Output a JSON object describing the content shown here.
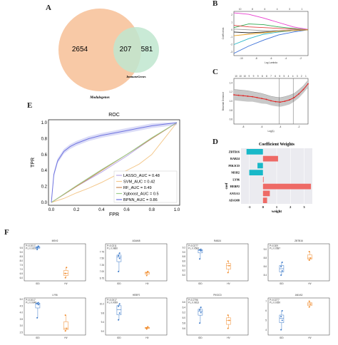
{
  "panels": {
    "A": "A",
    "B": "B",
    "C": "C",
    "D": "D",
    "E": "E",
    "F": "F"
  },
  "venn": {
    "left_only": "2654",
    "overlap": "207",
    "right_only": "581",
    "left_label": "Modulegenes",
    "right_label": "ImmuneGenes",
    "colors": {
      "left": "#f8c9a6",
      "right": "#bfe6cf"
    }
  },
  "chart_data": [
    {
      "id": "B",
      "type": "line",
      "title": "",
      "xlabel": "Log Lambda",
      "ylabel": "Coefficients",
      "top_ticks": [
        "10",
        "8",
        "6",
        "4",
        "3",
        "1"
      ],
      "x_ticks": [
        "-10",
        "-8",
        "-6",
        "-4",
        "-2"
      ],
      "y_ticks": [
        "2",
        "1",
        "0",
        "-1",
        "-2",
        "-3"
      ],
      "xlim": [
        -11,
        -1
      ],
      "ylim": [
        -3.5,
        2.5
      ],
      "series": [
        {
          "color": "#e83ccf",
          "x": [
            -11,
            -9,
            -7,
            -5,
            -3,
            -1
          ],
          "values": [
            2.3,
            2.1,
            1.6,
            1.0,
            0.4,
            0.05
          ]
        },
        {
          "color": "#2fa84f",
          "x": [
            -11,
            -9,
            -7,
            -5,
            -3,
            -1
          ],
          "values": [
            0.3,
            0.8,
            0.7,
            0.4,
            0.2,
            0.0
          ]
        },
        {
          "color": "#3a6fd8",
          "x": [
            -11,
            -9,
            -7,
            -5,
            -3,
            -1
          ],
          "values": [
            -3.2,
            -2.2,
            -1.4,
            -0.7,
            -0.3,
            0.0
          ]
        },
        {
          "color": "#26b6c6",
          "x": [
            -11,
            -9,
            -7,
            -5,
            -3,
            -1
          ],
          "values": [
            -2.0,
            -1.2,
            -0.6,
            -0.3,
            -0.1,
            0.0
          ]
        },
        {
          "color": "#e34242",
          "x": [
            -11,
            -9,
            -7,
            -5,
            -3,
            -1
          ],
          "values": [
            0.6,
            0.4,
            0.3,
            0.2,
            0.1,
            0.0
          ]
        },
        {
          "color": "#222222",
          "x": [
            -11,
            -9,
            -7,
            -5,
            -3,
            -1
          ],
          "values": [
            -0.3,
            -0.4,
            -0.3,
            -0.2,
            -0.1,
            0.0
          ]
        },
        {
          "color": "#9a9a9a",
          "x": [
            -11,
            -9,
            -7,
            -5,
            -3,
            -1
          ],
          "values": [
            0.1,
            0.0,
            -0.1,
            -0.1,
            0.0,
            0.0
          ]
        },
        {
          "color": "#e8a020",
          "x": [
            -11,
            -9,
            -7,
            -5,
            -3,
            -1
          ],
          "values": [
            -0.8,
            -0.6,
            -0.4,
            -0.2,
            -0.1,
            0.0
          ]
        }
      ]
    },
    {
      "id": "C",
      "type": "line",
      "title": "",
      "xlabel": "Log(λ)",
      "ylabel": "Binomial Deviance",
      "top_ticks": [
        "10",
        "10",
        "10",
        "9",
        "9",
        "9",
        "8",
        "8",
        "7",
        "6",
        "5",
        "5",
        "4",
        "4",
        "3",
        "2",
        "1"
      ],
      "x_ticks": [
        "-8",
        "-6",
        "-4",
        "-2"
      ],
      "y_ticks": [
        "1.4",
        "1.2",
        "1.0",
        "0.8",
        "0.6"
      ],
      "xlim": [
        -9,
        -1
      ],
      "ylim": [
        0.5,
        1.5
      ],
      "vlines": [
        -4.1,
        -2.6
      ],
      "x": [
        -9,
        -8.5,
        -8,
        -7.5,
        -7,
        -6.5,
        -6,
        -5.5,
        -5,
        -4.5,
        -4,
        -3.5,
        -3,
        -2.5,
        -2,
        -1.5,
        -1
      ],
      "values": [
        1.14,
        1.13,
        1.12,
        1.11,
        1.1,
        1.08,
        1.06,
        1.04,
        1.01,
        0.99,
        0.98,
        1.0,
        1.03,
        1.08,
        1.16,
        1.26,
        1.38
      ],
      "err": [
        0.12,
        0.12,
        0.12,
        0.12,
        0.11,
        0.11,
        0.11,
        0.1,
        0.1,
        0.1,
        0.1,
        0.1,
        0.1,
        0.09,
        0.09,
        0.08,
        0.08
      ]
    },
    {
      "id": "D",
      "type": "bar",
      "title": "Coefficient Weights",
      "xlabel": "weight",
      "ylabel": "coef",
      "categories": [
        "ZBTB16",
        "RAB24",
        "PIK3CD",
        "MSH2",
        "LY96",
        "HEBP2",
        "ANXA3",
        "ADAM8"
      ],
      "values": [
        -1.2,
        1.1,
        -0.4,
        -1.0,
        0.05,
        3.5,
        0.5,
        0.3
      ],
      "xlim": [
        -1.6,
        3.6
      ],
      "x_ticks": [
        "-1",
        "0",
        "1",
        "2",
        "3"
      ],
      "colors": {
        "negative": "#18b8c8",
        "positive": "#ee6a66"
      }
    },
    {
      "id": "E",
      "type": "line",
      "title": "ROC",
      "xlabel": "FPR",
      "ylabel": "TPR",
      "xlim": [
        0,
        1
      ],
      "ylim": [
        0,
        1
      ],
      "x_ticks": [
        "0.0",
        "0.2",
        "0.4",
        "0.6",
        "0.8",
        "1.0"
      ],
      "y_ticks": [
        "0.0",
        "0.2",
        "0.4",
        "0.6",
        "0.8",
        "1.0"
      ],
      "series": [
        {
          "name": "LASSO_AUC = 0.48",
          "color": "#b9a8e8",
          "x": [
            0,
            0.2,
            0.4,
            0.6,
            0.8,
            1.0
          ],
          "values": [
            0,
            0.2,
            0.38,
            0.58,
            0.8,
            1.0
          ]
        },
        {
          "name": "SVM_AUC = 0.42",
          "color": "#f4c98e",
          "x": [
            0,
            0.1,
            0.2,
            0.3,
            0.4,
            0.5,
            0.6,
            0.7,
            0.8,
            0.9,
            1.0
          ],
          "values": [
            0,
            0.05,
            0.12,
            0.18,
            0.25,
            0.33,
            0.4,
            0.48,
            0.6,
            0.8,
            1.0
          ]
        },
        {
          "name": "RF_AUC = 0.49",
          "color": "#c98a56",
          "x": [
            0,
            0.2,
            0.4,
            0.6,
            0.8,
            1.0
          ],
          "values": [
            0,
            0.2,
            0.4,
            0.6,
            0.8,
            1.0
          ]
        },
        {
          "name": "Xgboost_AUC = 0.5",
          "color": "#9ccc8c",
          "x": [
            0,
            0.2,
            0.4,
            0.6,
            0.8,
            1.0
          ],
          "values": [
            0,
            0.21,
            0.41,
            0.6,
            0.81,
            1.0
          ]
        },
        {
          "name": "BPNN_AUC = 0.86",
          "color": "#6f74e0",
          "x": [
            0,
            0.02,
            0.05,
            0.1,
            0.15,
            0.2,
            0.3,
            0.4,
            0.5,
            0.6,
            0.7,
            0.8,
            0.9,
            1.0
          ],
          "values": [
            0,
            0.35,
            0.52,
            0.64,
            0.7,
            0.74,
            0.8,
            0.84,
            0.87,
            0.9,
            0.93,
            0.96,
            0.98,
            1.0
          ]
        }
      ]
    },
    {
      "id": "F",
      "type": "scatter",
      "title": "",
      "groups": [
        "IDD",
        "HV"
      ],
      "group_colors": {
        "IDD": "#3a78c8",
        "HV": "#f08a2a"
      },
      "subplots": [
        {
          "gene": "MSH2",
          "p": "P=0.0017",
          "p2": "P.L.0.0203",
          "ylim": [
            5.8,
            9.8
          ],
          "y_ticks": [
            "9.5",
            "9.0",
            "8.5",
            "8.0",
            "7.5",
            "7.0",
            "6.5",
            "6.0"
          ],
          "IDD": [
            9.3,
            9.6,
            9.5,
            9.7
          ],
          "HV": [
            6.5,
            7.2,
            6.0
          ]
        },
        {
          "gene": "ADAM8",
          "p": "P=0.0211",
          "p2": "P.L.0.0860",
          "ylim": [
            6.7,
            8.0
          ],
          "y_ticks": [
            "7.75",
            "7.50",
            "7.25",
            "7.00",
            "6.75"
          ],
          "IDD": [
            7.0,
            7.5,
            7.6,
            7.7
          ],
          "HV": [
            6.85,
            7.0,
            6.95
          ]
        },
        {
          "gene": "RAB24",
          "p": "P=0.0277",
          "p2": "P.L.0.0583",
          "ylim": [
            7.8,
            9.3
          ],
          "y_ticks": [
            "9.2",
            "9.0",
            "8.8",
            "8.6",
            "8.4",
            "8.2",
            "8.0"
          ],
          "IDD": [
            8.7,
            9.05,
            9.1,
            9.12
          ],
          "HV": [
            8.1,
            8.4,
            8.6
          ]
        },
        {
          "gene": "ZBTB16",
          "p": "P=0.309",
          "p2": "P.L.0.0587",
          "ylim": [
            8.3,
            9.1
          ],
          "y_ticks": [
            "9.0",
            "8.8",
            "8.6",
            "8.4"
          ],
          "IDD": [
            8.4,
            8.5,
            8.6,
            8.7
          ],
          "HV": [
            8.75,
            8.8,
            8.95
          ]
        },
        {
          "gene": "LY96",
          "p": "P=0.0017",
          "p2": "P.L.0.0348",
          "ylim": [
            2.4,
            5.0
          ],
          "y_ticks": [
            "5.0",
            "4.5",
            "4.0",
            "3.5",
            "3.0",
            "2.5"
          ],
          "IDD": [
            3.6,
            4.6,
            4.7,
            4.75
          ],
          "HV": [
            2.6,
            2.8,
            3.8
          ]
        },
        {
          "gene": "HEBP2",
          "p": "P=0.0017",
          "p2": "P.L.0.0059",
          "ylim": [
            8.9,
            10.4
          ],
          "y_ticks": [
            "10.2",
            "9.8",
            "9.4",
            "9.0"
          ],
          "IDD": [
            9.5,
            9.8,
            10.1,
            10.2
          ],
          "HV": [
            9.1,
            9.2,
            9.15
          ]
        },
        {
          "gene": "PIK3CD",
          "p": "P=0.2796",
          "p2": "P.L.0.0813",
          "ylim": [
            5.4,
            6.7
          ],
          "y_ticks": [
            "6.6",
            "6.4",
            "6.2",
            "6.0",
            "5.8",
            "5.6"
          ],
          "IDD": [
            5.8,
            6.2,
            6.3,
            6.4
          ],
          "HV": [
            5.6,
            5.9,
            6.1
          ]
        },
        {
          "gene": "ANXA3",
          "p": "P=0.0277",
          "p2": "P.L.0.0350",
          "ylim": [
            3.6,
            7.2
          ],
          "y_ticks": [
            "7",
            "6",
            "5",
            "4"
          ],
          "IDD": [
            4.0,
            5.0,
            5.4,
            6.0
          ],
          "HV": [
            6.4,
            6.7,
            7.0
          ]
        }
      ]
    }
  ]
}
